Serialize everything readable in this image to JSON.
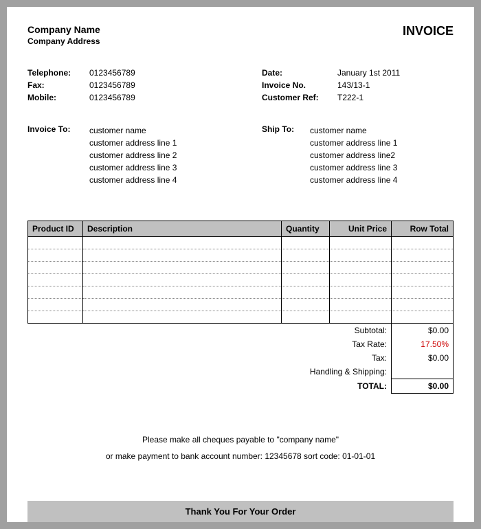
{
  "header": {
    "company_name": "Company Name",
    "company_address": "Company Address",
    "invoice_title": "INVOICE"
  },
  "contact": {
    "telephone_label": "Telephone:",
    "telephone": "0123456789",
    "fax_label": "Fax:",
    "fax": "0123456789",
    "mobile_label": "Mobile:",
    "mobile": "0123456789"
  },
  "meta": {
    "date_label": "Date:",
    "date": "January 1st 2011",
    "invoice_no_label": "Invoice No.",
    "invoice_no": "143/13-1",
    "customer_ref_label": "Customer Ref:",
    "customer_ref": "T222-1"
  },
  "invoice_to": {
    "label": "Invoice To:",
    "lines": [
      "customer name",
      "customer address line 1",
      "customer address line 2",
      "customer address line 3",
      "customer address line 4"
    ]
  },
  "ship_to": {
    "label": "Ship To:",
    "lines": [
      "customer name",
      "customer address line 1",
      "customer address line2",
      "customer address line 3",
      "customer address line 4"
    ]
  },
  "table": {
    "columns": {
      "product_id": "Product ID",
      "description": "Description",
      "quantity": "Quantity",
      "unit_price": "Unit Price",
      "row_total": "Row Total"
    },
    "empty_rows": 7,
    "header_bg": "#c0c0c0",
    "border_color": "#000000",
    "dotted_color": "#888888"
  },
  "totals": {
    "subtotal_label": "Subtotal:",
    "subtotal": "$0.00",
    "tax_rate_label": "Tax Rate:",
    "tax_rate": "17.50%",
    "tax_label": "Tax:",
    "tax": "$0.00",
    "shipping_label": "Handling & Shipping:",
    "shipping": "",
    "total_label": "TOTAL:",
    "total": "$0.00"
  },
  "payment": {
    "line1": "Please make all cheques payable to \"company name\"",
    "line2": "or make payment to bank account number: 12345678 sort code: 01-01-01"
  },
  "footer": {
    "thank_you": "Thank You For Your Order"
  },
  "colors": {
    "page_bg": "#ffffff",
    "outer_bg": "#a0a0a0",
    "header_cell_bg": "#c0c0c0",
    "tax_rate_color": "#cc0000",
    "text_color": "#000000"
  }
}
